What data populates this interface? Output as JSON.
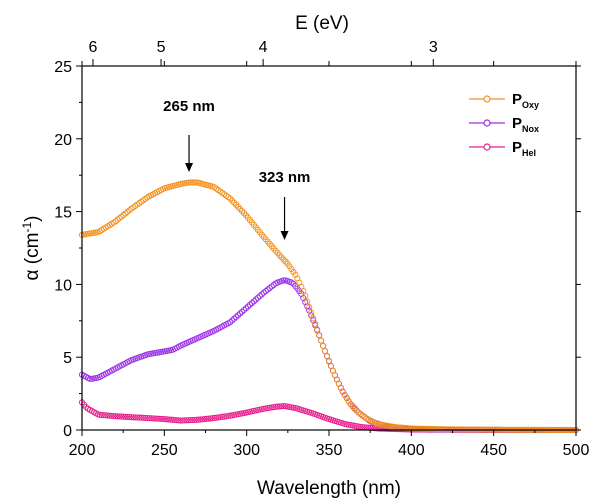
{
  "chart_data": {
    "type": "scatter",
    "xlabel": "Wavelength (nm)",
    "ylabel_main": "α (cm",
    "ylabel_sup": "-1",
    "ylabel_close": ")",
    "top_xlabel": "E (eV)",
    "xlim": [
      200,
      500
    ],
    "ylim": [
      0,
      25
    ],
    "x_ticks": [
      200,
      250,
      300,
      350,
      400,
      450,
      500
    ],
    "x_tick_labels": [
      "200",
      "250",
      "300",
      "350",
      "400",
      "450",
      "500"
    ],
    "y_ticks": [
      0,
      5,
      10,
      15,
      20,
      25
    ],
    "y_tick_labels": [
      "0",
      "5",
      "10",
      "15",
      "20",
      "25"
    ],
    "top_ticks": [
      6,
      5,
      4,
      3
    ],
    "top_tick_labels": [
      "6",
      "5",
      "4",
      "3"
    ],
    "top_axis_relation": "E (eV) = 1240 / wavelength (nm)",
    "series": [
      {
        "name": "P",
        "subscript": "Oxy",
        "color": "#F2901E",
        "points": [
          [
            200,
            13.4
          ],
          [
            210,
            13.6
          ],
          [
            220,
            14.3
          ],
          [
            230,
            15.2
          ],
          [
            240,
            16.0
          ],
          [
            250,
            16.6
          ],
          [
            260,
            16.9
          ],
          [
            265,
            17.0
          ],
          [
            270,
            17.0
          ],
          [
            280,
            16.7
          ],
          [
            290,
            15.9
          ],
          [
            300,
            14.7
          ],
          [
            310,
            13.3
          ],
          [
            320,
            12.0
          ],
          [
            325,
            11.4
          ],
          [
            330,
            10.6
          ],
          [
            335,
            9.4
          ],
          [
            340,
            7.8
          ],
          [
            345,
            6.2
          ],
          [
            350,
            4.7
          ],
          [
            355,
            3.4
          ],
          [
            360,
            2.3
          ],
          [
            365,
            1.5
          ],
          [
            370,
            1.0
          ],
          [
            375,
            0.65
          ],
          [
            380,
            0.4
          ],
          [
            390,
            0.2
          ],
          [
            400,
            0.1
          ],
          [
            420,
            0.05
          ],
          [
            450,
            0.02
          ],
          [
            500,
            0.0
          ]
        ]
      },
      {
        "name": "P",
        "subscript": "Nox",
        "color": "#9B30E8",
        "points": [
          [
            200,
            3.8
          ],
          [
            205,
            3.5
          ],
          [
            210,
            3.6
          ],
          [
            220,
            4.2
          ],
          [
            230,
            4.8
          ],
          [
            240,
            5.2
          ],
          [
            250,
            5.4
          ],
          [
            255,
            5.5
          ],
          [
            260,
            5.8
          ],
          [
            270,
            6.3
          ],
          [
            280,
            6.8
          ],
          [
            290,
            7.4
          ],
          [
            300,
            8.4
          ],
          [
            310,
            9.4
          ],
          [
            318,
            10.1
          ],
          [
            323,
            10.3
          ],
          [
            328,
            10.1
          ],
          [
            333,
            9.4
          ],
          [
            338,
            8.2
          ],
          [
            343,
            6.8
          ],
          [
            348,
            5.3
          ],
          [
            353,
            3.9
          ],
          [
            358,
            2.7
          ],
          [
            363,
            1.8
          ],
          [
            368,
            1.2
          ],
          [
            375,
            0.6
          ],
          [
            385,
            0.25
          ],
          [
            400,
            0.08
          ],
          [
            420,
            0.03
          ],
          [
            450,
            0.01
          ],
          [
            500,
            0.0
          ]
        ]
      },
      {
        "name": "P",
        "subscript": "Hel",
        "color": "#E8208E",
        "points": [
          [
            200,
            1.9
          ],
          [
            203,
            1.5
          ],
          [
            210,
            1.05
          ],
          [
            220,
            0.95
          ],
          [
            230,
            0.88
          ],
          [
            240,
            0.82
          ],
          [
            250,
            0.75
          ],
          [
            260,
            0.65
          ],
          [
            270,
            0.7
          ],
          [
            280,
            0.82
          ],
          [
            290,
            0.98
          ],
          [
            300,
            1.2
          ],
          [
            310,
            1.45
          ],
          [
            318,
            1.6
          ],
          [
            323,
            1.65
          ],
          [
            330,
            1.5
          ],
          [
            340,
            1.15
          ],
          [
            350,
            0.75
          ],
          [
            360,
            0.4
          ],
          [
            370,
            0.2
          ],
          [
            380,
            0.1
          ],
          [
            400,
            0.03
          ],
          [
            450,
            0.0
          ],
          [
            500,
            0.0
          ]
        ]
      }
    ],
    "annotations": [
      {
        "text": "265 nm",
        "x": 265
      },
      {
        "text": "323 nm",
        "x": 323
      }
    ],
    "legend_placement": "top-right"
  }
}
